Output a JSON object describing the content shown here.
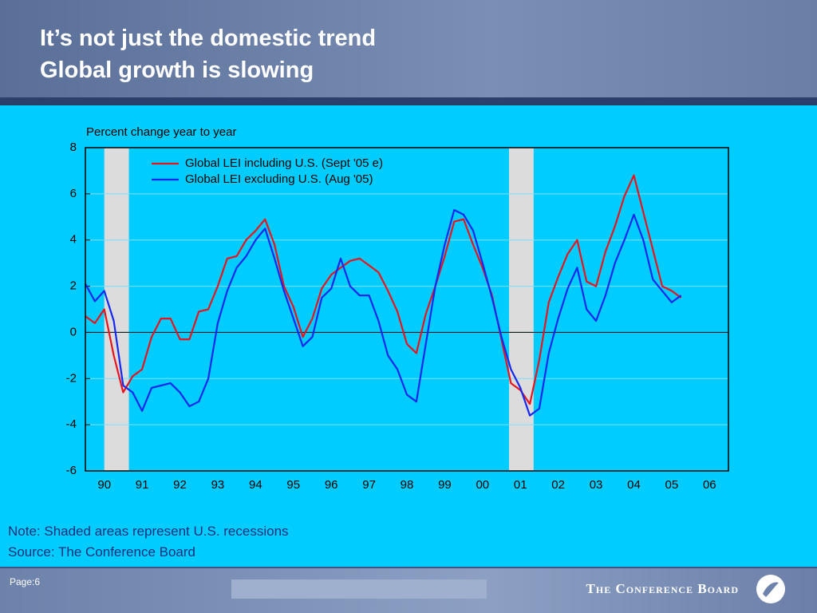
{
  "header": {
    "title_lines": [
      "It’s not just the domestic trend",
      "Global growth is slowing"
    ]
  },
  "chart_data": {
    "type": "line",
    "ylabel": "Percent change year to year",
    "x": [
      1990,
      1990.25,
      1990.5,
      1990.75,
      1991,
      1991.25,
      1991.5,
      1991.75,
      1992,
      1992.25,
      1992.5,
      1992.75,
      1993,
      1993.25,
      1993.5,
      1993.75,
      1994,
      1994.25,
      1994.5,
      1994.75,
      1995,
      1995.25,
      1995.5,
      1995.75,
      1996,
      1996.25,
      1996.5,
      1996.75,
      1997,
      1997.25,
      1997.5,
      1997.75,
      1998,
      1998.25,
      1998.5,
      1998.75,
      1999,
      1999.25,
      1999.5,
      1999.75,
      2000,
      2000.25,
      2000.5,
      2000.75,
      2001,
      2001.25,
      2001.5,
      2001.75,
      2002,
      2002.25,
      2002.5,
      2002.75,
      2003,
      2003.25,
      2003.5,
      2003.75,
      2004,
      2004.25,
      2004.5,
      2004.75,
      2005,
      2005.25,
      2005.5,
      2005.75
    ],
    "xlim": [
      1990,
      2007
    ],
    "xticks": [
      {
        "value": 1990.5,
        "label": "90"
      },
      {
        "value": 1991.5,
        "label": "91"
      },
      {
        "value": 1992.5,
        "label": "92"
      },
      {
        "value": 1993.5,
        "label": "93"
      },
      {
        "value": 1994.5,
        "label": "94"
      },
      {
        "value": 1995.5,
        "label": "95"
      },
      {
        "value": 1996.5,
        "label": "96"
      },
      {
        "value": 1997.5,
        "label": "97"
      },
      {
        "value": 1998.5,
        "label": "98"
      },
      {
        "value": 1999.5,
        "label": "99"
      },
      {
        "value": 2000.5,
        "label": "00"
      },
      {
        "value": 2001.5,
        "label": "01"
      },
      {
        "value": 2002.5,
        "label": "02"
      },
      {
        "value": 2003.5,
        "label": "03"
      },
      {
        "value": 2004.5,
        "label": "04"
      },
      {
        "value": 2005.5,
        "label": "05"
      },
      {
        "value": 2006.5,
        "label": "06"
      }
    ],
    "ylim": [
      -6,
      8
    ],
    "yticks": [
      -6,
      -4,
      -2,
      0,
      2,
      4,
      6,
      8
    ],
    "grid": true,
    "legend": "upper left",
    "recessions": [
      [
        1990.5,
        1991.15
      ],
      [
        2001.2,
        2001.85
      ]
    ],
    "series": [
      {
        "name": "Global LEI including U.S. (Sept '05 e)",
        "color": "#e8141e",
        "values": [
          0.7,
          0.4,
          1.0,
          -1.0,
          -2.6,
          -1.9,
          -1.6,
          -0.2,
          0.6,
          0.6,
          -0.3,
          -0.3,
          0.9,
          1.0,
          2.0,
          3.2,
          3.3,
          4.0,
          4.4,
          4.9,
          3.8,
          2.0,
          1.1,
          -0.2,
          0.6,
          1.9,
          2.5,
          2.8,
          3.1,
          3.2,
          2.9,
          2.6,
          1.8,
          0.9,
          -0.5,
          -0.9,
          0.8,
          2.0,
          3.3,
          4.8,
          4.9,
          3.8,
          2.8,
          1.6,
          -0.3,
          -2.2,
          -2.5,
          -3.1,
          -1.2,
          1.3,
          2.4,
          3.4,
          4.0,
          2.2,
          2.0,
          3.5,
          4.6,
          5.9,
          6.8,
          5.2,
          3.6,
          2.0,
          1.8,
          1.5
        ]
      },
      {
        "name": "Global LEI excluding U.S. (Aug '05)",
        "color": "#1428f0",
        "values": [
          2.1,
          1.35,
          1.8,
          0.5,
          -2.3,
          -2.6,
          -3.4,
          -2.4,
          -2.3,
          -2.2,
          -2.6,
          -3.2,
          -3.0,
          -2.0,
          0.4,
          1.8,
          2.8,
          3.3,
          4.0,
          4.5,
          3.2,
          1.8,
          0.6,
          -0.6,
          -0.2,
          1.5,
          1.9,
          3.2,
          2.0,
          1.6,
          1.6,
          0.5,
          -1.0,
          -1.6,
          -2.7,
          -3.0,
          -0.5,
          2.0,
          3.8,
          5.3,
          5.1,
          4.4,
          3.0,
          1.5,
          -0.2,
          -1.6,
          -2.4,
          -3.6,
          -3.3,
          -0.9,
          0.6,
          1.9,
          2.8,
          1.0,
          0.5,
          1.6,
          3.0,
          4.0,
          5.1,
          4.0,
          2.3,
          1.8,
          1.3,
          1.6
        ]
      }
    ]
  },
  "notes": [
    "Note: Shaded areas represent U.S. recessions",
    "Source: The Conference Board"
  ],
  "footer": {
    "page": "Page:6",
    "brand": "The Conference Board"
  }
}
